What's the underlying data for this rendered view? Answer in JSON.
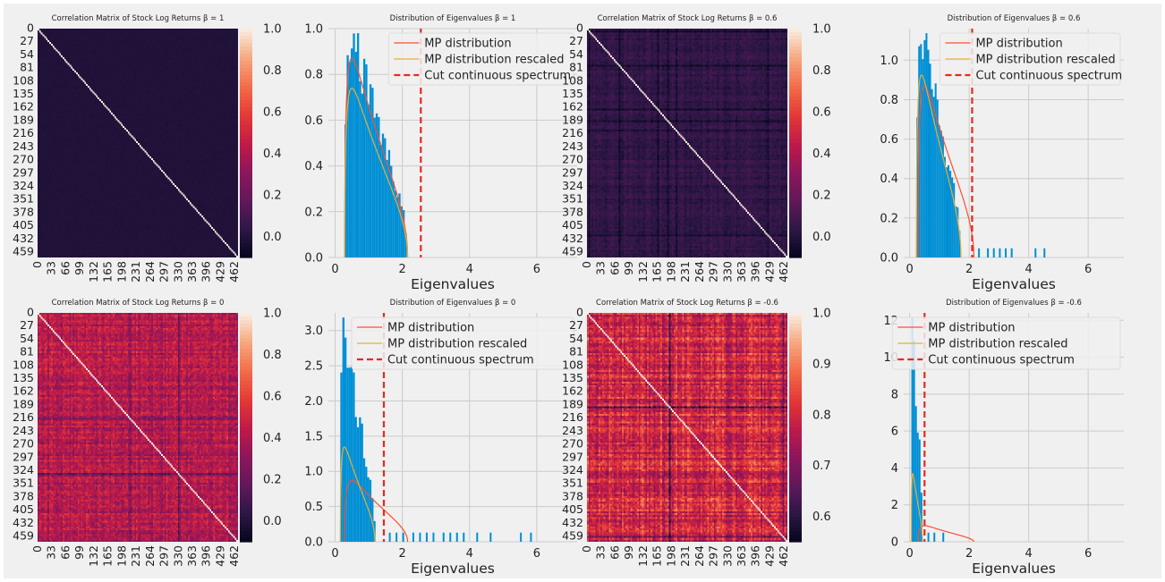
{
  "figure": {
    "background": "#f0f0f0"
  },
  "heatmap_ticks": [
    "0",
    "27",
    "54",
    "81",
    "108",
    "135",
    "162",
    "189",
    "216",
    "243",
    "270",
    "297",
    "324",
    "351",
    "378",
    "405",
    "432",
    "459"
  ],
  "heatmap_xticks": [
    "0",
    "33",
    "66",
    "99",
    "132",
    "165",
    "198",
    "231",
    "264",
    "297",
    "330",
    "363",
    "396",
    "429",
    "462"
  ],
  "eig_xticks": [
    "0",
    "2",
    "4",
    "6"
  ],
  "eig_xlabel": "Eigenvalues",
  "legend": {
    "mp": "MP distribution",
    "mp_rescaled": "MP distribution rescaled",
    "cut": "Cut continuous spectrum"
  },
  "colors": {
    "mp": "#fc4f30",
    "mp_rescaled": "#e5ae38",
    "cut": "#e82a1e",
    "hist": "#008fd5",
    "grid": "#cbcbcb"
  },
  "chart_data": [
    {
      "type": "heatmap",
      "title": "Correlation Matrix of Stock Log Returns β = 1",
      "n": 470,
      "base": 0.0,
      "spread": 0.01,
      "band": 0.0,
      "vmin": -0.1,
      "vmax": 1.0,
      "colorbar_ticks": [
        "1.0",
        "0.8",
        "0.6",
        "0.4",
        "0.2",
        "0.0"
      ],
      "colorbar_values": [
        1.0,
        0.8,
        0.6,
        0.4,
        0.2,
        0.0
      ]
    },
    {
      "type": "histogram",
      "title": "Distribution of Eigenvalues β = 1",
      "xlim": [
        -0.2,
        7.2
      ],
      "ylim": [
        0,
        1.0
      ],
      "yticks": [
        "0.0",
        "0.2",
        "0.4",
        "0.6",
        "0.8",
        "1.0"
      ],
      "ytick_values": [
        0,
        0.2,
        0.4,
        0.6,
        0.8,
        1.0
      ],
      "q": 0.22,
      "sigma2": 1.0,
      "rescale": 1.0,
      "cut": 2.55,
      "hist_scale": 1.0,
      "outliers": []
    },
    {
      "type": "heatmap",
      "title": "Correlation Matrix of Stock Log Returns β = 0.6",
      "n": 470,
      "base": 0.05,
      "spread": 0.035,
      "band": 0.05,
      "vmin": -0.1,
      "vmax": 1.0,
      "colorbar_ticks": [
        "1.0",
        "0.8",
        "0.6",
        "0.4",
        "0.2",
        "0.0"
      ],
      "colorbar_values": [
        1.0,
        0.8,
        0.6,
        0.4,
        0.2,
        0.0
      ]
    },
    {
      "type": "histogram",
      "title": "Distribution of Eigenvalues β = 0.6",
      "xlim": [
        -0.2,
        7.2
      ],
      "ylim": [
        0,
        1.16
      ],
      "yticks": [
        "0.0",
        "0.2",
        "0.4",
        "0.6",
        "0.8",
        "1.0"
      ],
      "ytick_values": [
        0,
        0.2,
        0.4,
        0.6,
        0.8,
        1.0
      ],
      "q": 0.22,
      "sigma2": 1.0,
      "rescale": 0.8,
      "cut": 2.1,
      "hist_scale": 1.12,
      "outliers": [
        2.3,
        2.6,
        2.8,
        3.0,
        3.2,
        3.4,
        4.2,
        4.5
      ]
    },
    {
      "type": "heatmap",
      "title": "Correlation Matrix of Stock Log Returns β = 0",
      "n": 470,
      "base": 0.42,
      "spread": 0.1,
      "band": 0.12,
      "vmin": -0.1,
      "vmax": 1.0,
      "colorbar_ticks": [
        "1.0",
        "0.8",
        "0.6",
        "0.4",
        "0.2",
        "0.0"
      ],
      "colorbar_values": [
        1.0,
        0.8,
        0.6,
        0.4,
        0.2,
        0.0
      ]
    },
    {
      "type": "histogram",
      "title": "Distribution of Eigenvalues β = 0",
      "xlim": [
        -0.2,
        7.2
      ],
      "ylim": [
        0,
        3.25
      ],
      "yticks": [
        "0.0",
        "0.5",
        "1.0",
        "1.5",
        "2.0",
        "2.5",
        "3.0"
      ],
      "ytick_values": [
        0,
        0.5,
        1.0,
        1.5,
        2.0,
        2.5,
        3.0
      ],
      "q": 0.22,
      "sigma2": 1.0,
      "rescale": 0.55,
      "cut": 1.45,
      "hist_scale": 3.1,
      "outliers": [
        1.6,
        1.8,
        2.0,
        2.3,
        2.5,
        2.7,
        2.9,
        3.2,
        3.4,
        3.6,
        3.8,
        4.2,
        4.6,
        5.5,
        5.8
      ]
    },
    {
      "type": "heatmap",
      "title": "Correlation Matrix of Stock Log Returns β = -0.6",
      "n": 470,
      "base": 0.8,
      "spread": 0.05,
      "band": 0.09,
      "vmin": 0.55,
      "vmax": 1.0,
      "colorbar_ticks": [
        "1.0",
        "0.9",
        "0.8",
        "0.7",
        "0.6"
      ],
      "colorbar_values": [
        1.0,
        0.9,
        0.8,
        0.7,
        0.6
      ]
    },
    {
      "type": "histogram",
      "title": "Distribution of Eigenvalues β = -0.6",
      "xlim": [
        -0.2,
        7.2
      ],
      "ylim": [
        0,
        12.4
      ],
      "yticks": [
        "0",
        "2",
        "4",
        "6",
        "8",
        "10",
        "12"
      ],
      "ytick_values": [
        0,
        2,
        4,
        6,
        8,
        10,
        12
      ],
      "q": 0.22,
      "sigma2": 1.0,
      "rescale": 0.2,
      "cut": 0.5,
      "hist_scale": 12.1,
      "outliers": [
        0.6,
        0.8,
        1.1
      ]
    }
  ]
}
